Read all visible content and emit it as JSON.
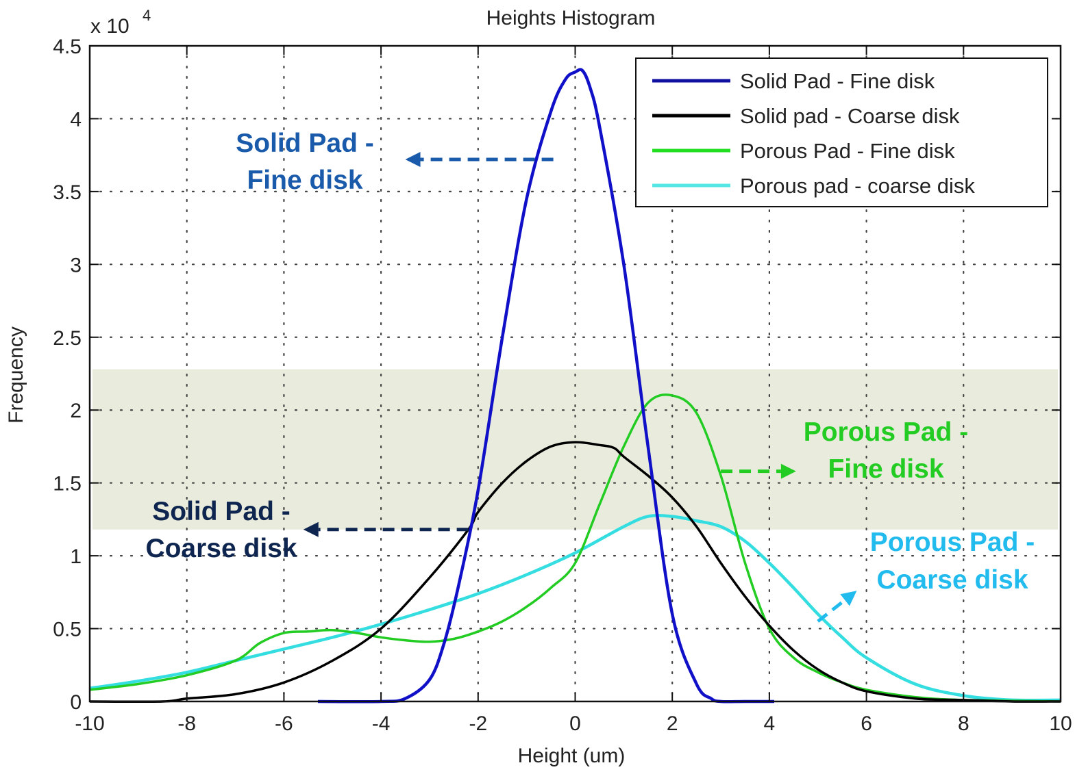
{
  "chart_data": {
    "type": "line",
    "title": "Heights Histogram",
    "xlabel": "Height (um)",
    "ylabel": "Frequency",
    "y_multiplier_label": "x 10",
    "y_multiplier_exponent": "4",
    "xlim": [
      -10,
      10
    ],
    "ylim": [
      0,
      4.5
    ],
    "y_unit_scale": 10000,
    "grid": true,
    "grid_style": "dotted",
    "legend_position": "top-right",
    "x_ticks": [
      -10,
      -8,
      -6,
      -4,
      -2,
      0,
      2,
      4,
      6,
      8,
      10
    ],
    "y_ticks": [
      0,
      0.5,
      1,
      1.5,
      2,
      2.5,
      3,
      3.5,
      4,
      4.5
    ],
    "x_tick_labels": [
      "-10",
      "-8",
      "-6",
      "-4",
      "-2",
      "0",
      "2",
      "4",
      "6",
      "8",
      "10"
    ],
    "y_tick_labels": [
      "0",
      "0.5",
      "1",
      "1.5",
      "2",
      "2.5",
      "3",
      "3.5",
      "4",
      "4.5"
    ],
    "highlight_band": {
      "y_from": 1.18,
      "y_to": 2.28,
      "color": "#e9ecdc"
    },
    "series": [
      {
        "name": "Solid Pad - Fine disk",
        "color": "#1010c8",
        "x": [
          -5.3,
          -4,
          -3.5,
          -3,
          -2.7,
          -2.4,
          -2,
          -1.5,
          -1,
          -0.5,
          -0.2,
          0,
          0.15,
          0.3,
          0.5,
          1,
          1.5,
          2,
          2.5,
          2.8,
          3,
          3.5,
          4.1
        ],
        "values": [
          0,
          0,
          0.02,
          0.15,
          0.4,
          0.8,
          1.45,
          2.5,
          3.45,
          4.05,
          4.27,
          4.32,
          4.33,
          4.22,
          3.95,
          3.0,
          1.75,
          0.6,
          0.12,
          0.02,
          0,
          0,
          0
        ]
      },
      {
        "name": "Solid pad - Coarse disk",
        "color": "#000000",
        "x": [
          -10,
          -8.5,
          -8,
          -7,
          -6,
          -5,
          -4,
          -3,
          -2.2,
          -2,
          -1.5,
          -1,
          -0.5,
          0,
          0.5,
          0.8,
          1,
          1.5,
          2,
          2.5,
          3,
          3.5,
          4,
          4.5,
          5,
          5.5,
          6,
          7,
          8,
          9,
          10
        ],
        "values": [
          0,
          0,
          0.02,
          0.05,
          0.13,
          0.28,
          0.5,
          0.85,
          1.18,
          1.3,
          1.5,
          1.65,
          1.75,
          1.78,
          1.76,
          1.74,
          1.68,
          1.55,
          1.4,
          1.2,
          0.95,
          0.72,
          0.52,
          0.35,
          0.22,
          0.13,
          0.07,
          0.02,
          0.01,
          0,
          0
        ]
      },
      {
        "name": "Porous Pad - Fine disk",
        "color": "#22cc22",
        "x": [
          -10,
          -9,
          -8,
          -7,
          -6.5,
          -6,
          -5.5,
          -5,
          -4.5,
          -4,
          -3.5,
          -3,
          -2.5,
          -2,
          -1.5,
          -1,
          -0.5,
          0,
          0.5,
          1,
          1.5,
          2,
          2.5,
          3,
          3.5,
          4,
          4.5,
          5,
          5.5,
          6,
          7,
          8,
          10
        ],
        "values": [
          0.08,
          0.12,
          0.18,
          0.28,
          0.4,
          0.47,
          0.48,
          0.49,
          0.47,
          0.44,
          0.42,
          0.41,
          0.43,
          0.48,
          0.55,
          0.65,
          0.78,
          0.95,
          1.35,
          1.75,
          2.05,
          2.1,
          1.98,
          1.55,
          0.95,
          0.5,
          0.3,
          0.2,
          0.13,
          0.08,
          0.03,
          0.01,
          0
        ]
      },
      {
        "name": "Porous pad - coarse disk",
        "color": "#33dde0",
        "x": [
          -10,
          -9,
          -8,
          -7,
          -6,
          -5,
          -4,
          -3,
          -2,
          -1,
          0,
          1,
          1.5,
          2,
          2.5,
          3,
          3.5,
          4,
          4.5,
          5,
          5.5,
          6,
          7,
          8,
          9,
          10
        ],
        "values": [
          0.09,
          0.14,
          0.2,
          0.28,
          0.36,
          0.44,
          0.53,
          0.63,
          0.74,
          0.87,
          1.02,
          1.2,
          1.27,
          1.27,
          1.24,
          1.2,
          1.1,
          0.95,
          0.78,
          0.6,
          0.44,
          0.3,
          0.12,
          0.04,
          0.01,
          0.01
        ]
      }
    ],
    "annotations": [
      {
        "text": [
          "Solid Pad -",
          "Fine disk"
        ],
        "color": "#1a5aaa",
        "arrow_from": [
          -0.45,
          3.72
        ],
        "arrow_to": [
          -3.5,
          3.72
        ]
      },
      {
        "text": [
          "Solid Pad -",
          "Coarse disk"
        ],
        "color": "#0e2550",
        "arrow_from": [
          -2.2,
          1.18
        ],
        "arrow_to": [
          -5.6,
          1.18
        ]
      },
      {
        "text": [
          "Porous Pad -",
          "Fine disk"
        ],
        "color": "#22cc22",
        "arrow_from": [
          3.0,
          1.58
        ],
        "arrow_to": [
          4.55,
          1.58
        ]
      },
      {
        "text": [
          "Porous Pad -",
          "Coarse disk"
        ],
        "color": "#22bbee",
        "arrow_from": [
          5.0,
          0.55
        ],
        "arrow_to": [
          5.8,
          0.76
        ]
      }
    ]
  },
  "legend": {
    "items": [
      {
        "label": "Solid Pad - Fine disk",
        "color": "#1010a0"
      },
      {
        "label": "Solid pad - Coarse disk",
        "color": "#000000"
      },
      {
        "label": "Porous Pad - Fine disk",
        "color": "#22dd22"
      },
      {
        "label": "Porous pad - coarse disk",
        "color": "#55e6e6"
      }
    ]
  }
}
